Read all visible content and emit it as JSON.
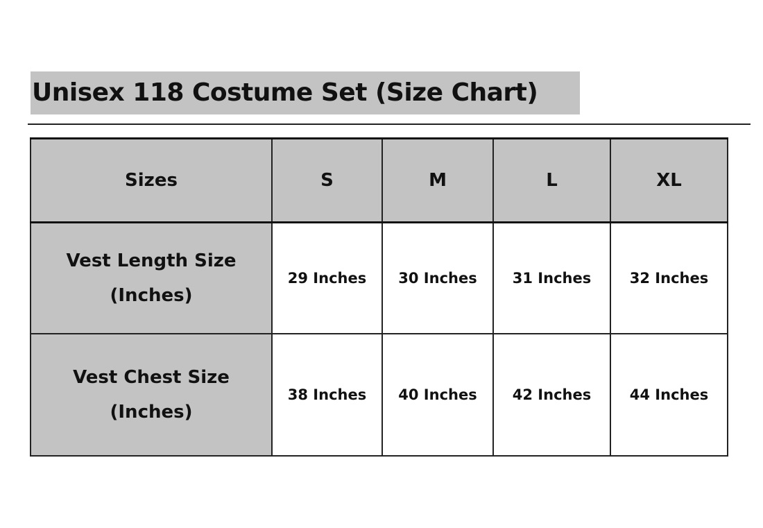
{
  "title": "Unisex 118 Costume Set (Size Chart)",
  "table": {
    "header": [
      "Sizes",
      "S",
      "M",
      "L",
      "XL"
    ],
    "rows": [
      {
        "label_line1": "Vest Length Size",
        "label_line2": "(Inches)",
        "values": [
          "29 Inches",
          "30 Inches",
          "31 Inches",
          "32 Inches"
        ]
      },
      {
        "label_line1": "Vest Chest Size",
        "label_line2": "(Inches)",
        "values": [
          "38 Inches",
          "40 Inches",
          "42 Inches",
          "44 Inches"
        ]
      }
    ]
  },
  "colors": {
    "header_fill": "#c3c3c3",
    "border": "#222222"
  }
}
